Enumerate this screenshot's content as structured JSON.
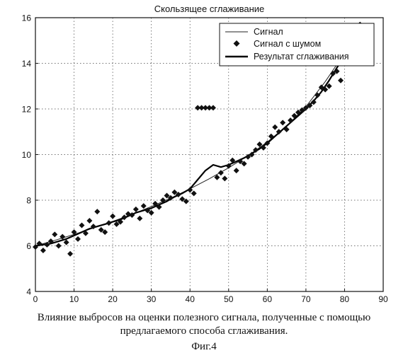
{
  "chart_data": {
    "type": "line",
    "title": "Скользящее сглаживание",
    "xlabel": "",
    "ylabel": "",
    "xlim": [
      0,
      90
    ],
    "ylim": [
      4,
      16
    ],
    "xticks": [
      0,
      10,
      20,
      30,
      40,
      50,
      60,
      70,
      80,
      90
    ],
    "yticks": [
      4,
      6,
      8,
      10,
      12,
      14,
      16
    ],
    "grid": true,
    "legend_position": "top-right",
    "series": [
      {
        "name": "Сигнал",
        "style": "thin-line",
        "x": [
          0,
          5,
          10,
          15,
          20,
          25,
          30,
          35,
          40,
          45,
          50,
          55,
          60,
          65,
          70,
          75,
          79
        ],
        "y": [
          6.0,
          6.24,
          6.5,
          6.78,
          7.07,
          7.38,
          7.72,
          8.09,
          8.5,
          8.94,
          9.42,
          9.95,
          10.55,
          11.25,
          12.1,
          13.2,
          14.2
        ]
      },
      {
        "name": "Сигнал с шумом",
        "style": "diamond-markers",
        "x": [
          0,
          1,
          2,
          3,
          4,
          5,
          6,
          7,
          8,
          9,
          10,
          11,
          12,
          13,
          14,
          15,
          16,
          17,
          18,
          19,
          20,
          21,
          22,
          23,
          24,
          25,
          26,
          27,
          28,
          29,
          30,
          31,
          32,
          33,
          34,
          35,
          36,
          37,
          38,
          39,
          40,
          41,
          42,
          43,
          44,
          45,
          46,
          47,
          48,
          49,
          50,
          51,
          52,
          53,
          54,
          55,
          56,
          57,
          58,
          59,
          60,
          61,
          62,
          63,
          64,
          65,
          66,
          67,
          68,
          69,
          70,
          71,
          72,
          73,
          74,
          75,
          76,
          77,
          78,
          79,
          84
        ],
        "y": [
          5.95,
          6.1,
          5.8,
          6.05,
          6.2,
          6.5,
          6.0,
          6.4,
          6.15,
          5.65,
          6.6,
          6.3,
          6.9,
          6.55,
          7.1,
          6.85,
          7.5,
          6.7,
          6.6,
          7.0,
          7.3,
          6.95,
          7.05,
          7.25,
          7.4,
          7.35,
          7.6,
          7.2,
          7.75,
          7.55,
          7.45,
          7.85,
          7.7,
          8.0,
          8.2,
          8.1,
          8.35,
          8.25,
          8.05,
          7.95,
          8.45,
          8.3,
          12.05,
          12.05,
          12.05,
          12.05,
          12.05,
          9.0,
          9.2,
          8.95,
          9.5,
          9.75,
          9.3,
          9.7,
          9.6,
          9.9,
          10.0,
          10.2,
          10.45,
          10.3,
          10.5,
          10.8,
          11.2,
          11.0,
          11.4,
          11.1,
          11.5,
          11.7,
          11.85,
          11.95,
          12.05,
          12.15,
          12.3,
          12.6,
          12.95,
          12.85,
          13.0,
          13.55,
          13.65,
          13.25,
          15.7
        ]
      },
      {
        "name": "Результат сглаживания",
        "style": "thick-line",
        "x": [
          0,
          2,
          4,
          6,
          8,
          10,
          12,
          14,
          16,
          18,
          20,
          22,
          24,
          26,
          28,
          30,
          32,
          34,
          36,
          38,
          40,
          42,
          44,
          46,
          48,
          50,
          52,
          54,
          56,
          58,
          60,
          62,
          64,
          66,
          68,
          70,
          72,
          74,
          76,
          78,
          80
        ],
        "y": [
          6.0,
          6.05,
          6.1,
          6.2,
          6.3,
          6.45,
          6.6,
          6.75,
          6.85,
          6.95,
          7.05,
          7.15,
          7.3,
          7.45,
          7.55,
          7.65,
          7.8,
          7.95,
          8.15,
          8.3,
          8.5,
          8.9,
          9.3,
          9.55,
          9.45,
          9.55,
          9.7,
          9.85,
          10.05,
          10.25,
          10.5,
          10.8,
          11.1,
          11.4,
          11.7,
          12.0,
          12.35,
          12.75,
          13.25,
          13.8,
          14.3
        ]
      }
    ]
  },
  "caption": {
    "line1": "Влияние выбросов на оценки полезного сигнала, полученные с помощью",
    "line2": "предлагаемого способа сглаживания.",
    "figure": "Фиг.4"
  }
}
